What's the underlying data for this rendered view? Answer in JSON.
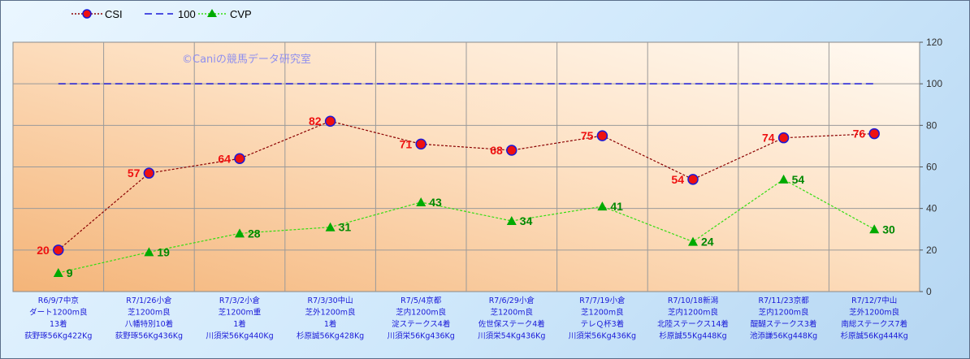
{
  "chart_data": {
    "type": "line",
    "watermark": "©Caniの競馬データ研究室",
    "legend": {
      "placement": "top-left",
      "entries": [
        {
          "name": "CSI",
          "color": "#8b0000",
          "style": "dotted-circle-marker"
        },
        {
          "name": "100",
          "color": "#1a1ad8",
          "style": "dashed"
        },
        {
          "name": "CVP",
          "color": "#33dd11",
          "style": "dotted-triangle-marker"
        }
      ]
    },
    "y_axis": {
      "position": "right",
      "ylim": [
        0,
        120
      ],
      "ticks": [
        "0",
        "20",
        "40",
        "60",
        "80",
        "100",
        "120"
      ]
    },
    "grid": true,
    "categories": [
      [
        "R6/9/7中京",
        "ダート1200m良",
        "13着",
        "荻野琢56Kg422Kg"
      ],
      [
        "R7/1/26小倉",
        "芝1200m良",
        "八幡特別10着",
        "荻野琢56Kg436Kg"
      ],
      [
        "R7/3/2小倉",
        "芝1200m重",
        "1着",
        "川須栄56Kg440Kg"
      ],
      [
        "R7/3/30中山",
        "芝外1200m良",
        "1着",
        "杉原誠56Kg428Kg"
      ],
      [
        "R7/5/4京都",
        "芝内1200m良",
        "淀ステークス4着",
        "川須栄56Kg436Kg"
      ],
      [
        "R7/6/29小倉",
        "芝1200m良",
        "佐世保ステーク4着",
        "川須栄54Kg436Kg"
      ],
      [
        "R7/7/19小倉",
        "芝1200m良",
        "テレＱ杯3着",
        "川須栄56Kg436Kg"
      ],
      [
        "R7/10/18新潟",
        "芝内1200m良",
        "北陸ステークス14着",
        "杉原誠55Kg448Kg"
      ],
      [
        "R7/11/23京都",
        "芝内1200m良",
        "醍醐ステークス3着",
        "池添謙56Kg448Kg"
      ],
      [
        "R7/12/7中山",
        "芝外1200m良",
        "南総ステークス7着",
        "杉原誠56Kg444Kg"
      ]
    ],
    "series": [
      {
        "name": "CSI",
        "values": [
          20,
          57,
          64,
          82,
          71,
          68,
          75,
          54,
          74,
          76
        ],
        "color": "#8b0000",
        "marker_fill": "#ee1111",
        "marker_stroke": "#1a1ad8",
        "label_color": "#ee1111"
      },
      {
        "name": "100",
        "values": [
          100,
          100,
          100,
          100,
          100,
          100,
          100,
          100,
          100,
          100
        ],
        "color": "#1a1ad8"
      },
      {
        "name": "CVP",
        "values": [
          9,
          19,
          28,
          31,
          43,
          34,
          41,
          24,
          54,
          30
        ],
        "color": "#33dd11",
        "marker_fill": "#00aa00",
        "label_color": "#008800"
      }
    ],
    "colors": {
      "plot_bg_light": "#fffaf3",
      "plot_bg_dark": "#f4b478",
      "grid": "#9a9a9a",
      "xlabel_text": "#1a1ad8"
    }
  }
}
